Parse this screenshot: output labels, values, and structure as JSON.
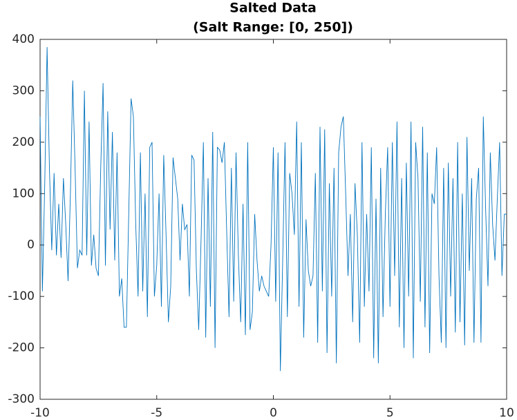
{
  "chart_data": {
    "type": "line",
    "title": "Salted Data",
    "subtitle": "(Salt Range: [0, 250])",
    "x": [
      -10,
      -9.9,
      -9.8,
      -9.7,
      -9.6,
      -9.5,
      -9.4,
      -9.3,
      -9.2,
      -9.1,
      -9,
      -8.9,
      -8.8,
      -8.7,
      -8.6,
      -8.5,
      -8.4,
      -8.3,
      -8.2,
      -8.1,
      -8,
      -7.9,
      -7.8,
      -7.7,
      -7.6,
      -7.5,
      -7.4,
      -7.3,
      -7.2,
      -7.1,
      -7,
      -6.9,
      -6.8,
      -6.7,
      -6.6,
      -6.5,
      -6.4,
      -6.3,
      -6.2,
      -6.1,
      -6,
      -5.9,
      -5.8,
      -5.7,
      -5.6,
      -5.5,
      -5.4,
      -5.3,
      -5.2,
      -5.1,
      -5,
      -4.9,
      -4.8,
      -4.7,
      -4.6,
      -4.5,
      -4.4,
      -4.3,
      -4.2,
      -4.1,
      -4,
      -3.9,
      -3.8,
      -3.7,
      -3.6,
      -3.5,
      -3.4,
      -3.3,
      -3.2,
      -3.1,
      -3,
      -2.9,
      -2.8,
      -2.7,
      -2.6,
      -2.5,
      -2.4,
      -2.3,
      -2.2,
      -2.1,
      -2,
      -1.9,
      -1.8,
      -1.7,
      -1.6,
      -1.5,
      -1.4,
      -1.3,
      -1.2,
      -1.1,
      -1,
      -0.9,
      -0.8,
      -0.7,
      -0.6,
      -0.5,
      -0.4,
      -0.3,
      -0.2,
      -0.1,
      0,
      0.1,
      0.2,
      0.3,
      0.4,
      0.5,
      0.6,
      0.7,
      0.8,
      0.9,
      1,
      1.1,
      1.2,
      1.3,
      1.4,
      1.5,
      1.6,
      1.7,
      1.8,
      1.9,
      2,
      2.1,
      2.2,
      2.3,
      2.4,
      2.5,
      2.6,
      2.7,
      2.8,
      2.9,
      3,
      3.1,
      3.2,
      3.3,
      3.4,
      3.5,
      3.6,
      3.7,
      3.8,
      3.9,
      4,
      4.1,
      4.2,
      4.3,
      4.4,
      4.5,
      4.6,
      4.7,
      4.8,
      4.9,
      5,
      5.1,
      5.2,
      5.3,
      5.4,
      5.5,
      5.6,
      5.7,
      5.8,
      5.9,
      6,
      6.1,
      6.2,
      6.3,
      6.4,
      6.5,
      6.6,
      6.7,
      6.8,
      6.9,
      7,
      7.1,
      7.2,
      7.3,
      7.4,
      7.5,
      7.6,
      7.7,
      7.8,
      7.9,
      8,
      8.1,
      8.2,
      8.3,
      8.4,
      8.5,
      8.6,
      8.7,
      8.8,
      8.9,
      9,
      9.1,
      9.2,
      9.3,
      9.4,
      9.5,
      9.6,
      9.7,
      9.8,
      9.9,
      10
    ],
    "series": [
      {
        "color": "#0072bd",
        "values": [
          250,
          -90,
          120,
          385,
          150,
          -10,
          140,
          -20,
          80,
          -25,
          130,
          40,
          -70,
          100,
          320,
          150,
          -45,
          -10,
          -20,
          300,
          -20,
          240,
          -40,
          20,
          -45,
          -60,
          150,
          315,
          -40,
          260,
          30,
          220,
          -30,
          180,
          -100,
          -65,
          -160,
          -160,
          60,
          285,
          250,
          40,
          -100,
          180,
          -90,
          100,
          -140,
          190,
          200,
          -100,
          -40,
          100,
          -120,
          175,
          20,
          -150,
          -80,
          170,
          130,
          90,
          -30,
          80,
          30,
          40,
          -100,
          175,
          165,
          -50,
          -165,
          10,
          200,
          -180,
          130,
          -120,
          220,
          -200,
          190,
          185,
          160,
          200,
          25,
          -140,
          150,
          -110,
          180,
          -20,
          -150,
          80,
          -175,
          200,
          -165,
          -130,
          60,
          -30,
          -90,
          -60,
          -80,
          -90,
          -100,
          0,
          190,
          -110,
          180,
          -245,
          -30,
          200,
          -140,
          140,
          100,
          20,
          240,
          -120,
          200,
          -180,
          50,
          -50,
          -80,
          -60,
          140,
          -190,
          230,
          -90,
          225,
          -210,
          120,
          -100,
          150,
          -230,
          180,
          230,
          250,
          100,
          -60,
          60,
          -150,
          120,
          20,
          -190,
          200,
          -120,
          60,
          -90,
          190,
          -220,
          90,
          -230,
          150,
          -140,
          60,
          190,
          -120,
          200,
          -60,
          240,
          -160,
          130,
          -200,
          160,
          -100,
          240,
          -220,
          200,
          130,
          -110,
          230,
          -160,
          180,
          -210,
          100,
          80,
          190,
          -60,
          -190,
          150,
          -200,
          160,
          -100,
          130,
          -170,
          200,
          -150,
          100,
          -195,
          210,
          -50,
          130,
          -190,
          90,
          150,
          -190,
          250,
          70,
          -80,
          180,
          40,
          -30,
          90,
          200,
          -60,
          60,
          60
        ]
      }
    ],
    "xlim": [
      -10,
      10
    ],
    "ylim": [
      -300,
      400
    ],
    "xticks": [
      -10,
      -5,
      0,
      5,
      10
    ],
    "yticks": [
      -300,
      -200,
      -100,
      0,
      100,
      200,
      300,
      400
    ]
  }
}
